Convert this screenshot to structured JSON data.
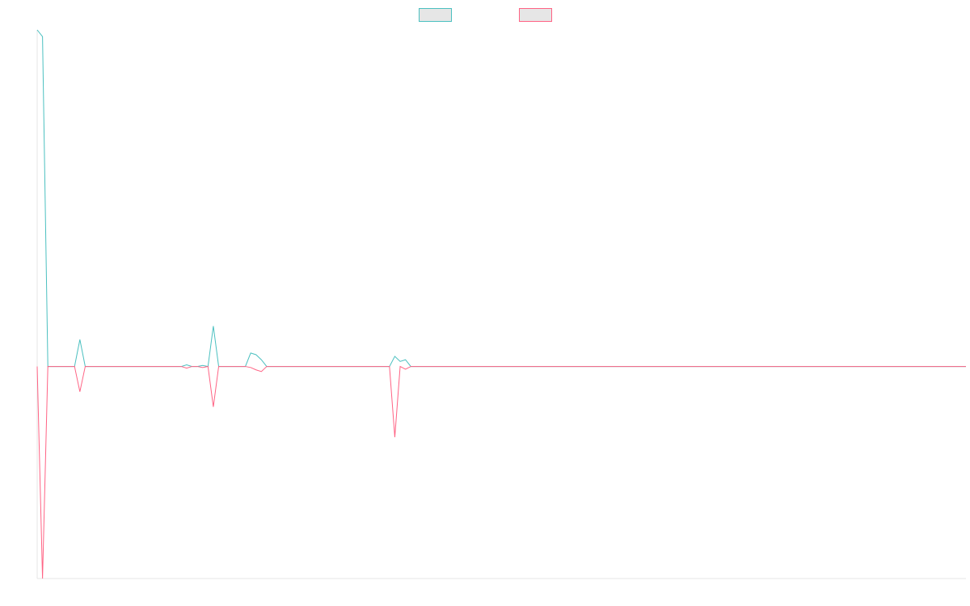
{
  "chart_data": {
    "type": "line",
    "x": [
      0,
      1,
      2,
      7,
      8,
      9,
      27,
      28,
      29,
      30,
      31,
      32,
      33,
      34,
      39,
      40,
      41,
      42,
      43,
      66,
      67,
      68,
      69,
      70,
      174
    ],
    "xlim": [
      0,
      174
    ],
    "ylim": [
      -0.63,
      1
    ],
    "legend": "top",
    "series": [
      {
        "color": "#4bc0c0",
        "values": [
          1.0,
          0.98,
          0,
          0,
          0.08,
          0,
          0,
          0.005,
          0,
          0,
          0.003,
          0,
          0.12,
          0,
          0,
          0.04,
          0.035,
          0.02,
          0,
          0,
          0.03,
          0.015,
          0.02,
          0,
          0
        ]
      },
      {
        "color": "#ff6384",
        "values": [
          0,
          -0.63,
          0,
          0,
          -0.075,
          0,
          0,
          -0.005,
          0,
          0,
          -0.003,
          0,
          -0.12,
          0,
          0,
          -0.003,
          -0.01,
          -0.015,
          0,
          0,
          -0.21,
          0,
          -0.008,
          0,
          0
        ]
      }
    ]
  }
}
